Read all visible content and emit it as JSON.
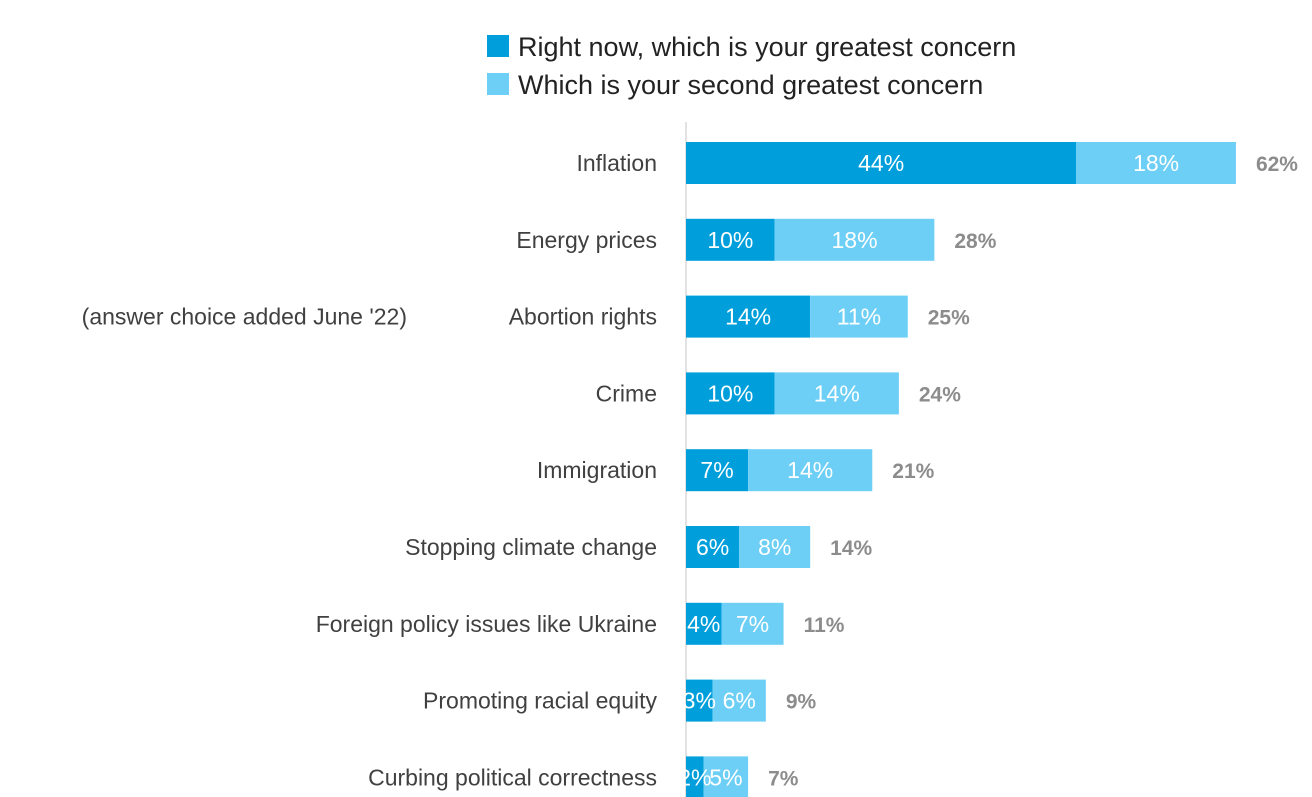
{
  "chart_data": {
    "type": "bar",
    "orientation": "horizontal",
    "stacked": true,
    "categories": [
      "Inflation",
      "Energy prices",
      "Abortion rights",
      "Crime",
      "Immigration",
      "Stopping climate change",
      "Foreign policy issues like Ukraine",
      "Promoting racial equity",
      "Curbing political correctness"
    ],
    "series": [
      {
        "name": "Right now, which is your greatest concern",
        "color": "#009fdb",
        "values": [
          44,
          10,
          14,
          10,
          7,
          6,
          4,
          3,
          2
        ],
        "labels": [
          "44%",
          "10%",
          "14%",
          "10%",
          "7%",
          "6%",
          "4%",
          "3%",
          "2%"
        ]
      },
      {
        "name": "Which is your second greatest concern",
        "color": "#6dcff6",
        "values": [
          18,
          18,
          11,
          14,
          14,
          8,
          7,
          6,
          5
        ],
        "labels": [
          "18%",
          "18%",
          "11%",
          "14%",
          "14%",
          "8%",
          "7%",
          "6%",
          "5%"
        ]
      }
    ],
    "totals": [
      62,
      28,
      25,
      24,
      21,
      14,
      11,
      9,
      7
    ],
    "total_labels": [
      "62%",
      "28%",
      "25%",
      "24%",
      "21%",
      "14%",
      "11%",
      "9%",
      "7%"
    ],
    "annotations": [
      {
        "category": "Abortion rights",
        "text": "(answer choice added June '22)"
      }
    ],
    "xlim": [
      0,
      62
    ],
    "legend_position": "top",
    "grid": false,
    "title": "",
    "xlabel": "",
    "ylabel": "",
    "colors": {
      "axis": "#d9d9d9",
      "category_text": "#404040",
      "total_text": "#8c8c8c",
      "legend_text": "#222222",
      "segment_text": "#ffffff"
    }
  }
}
